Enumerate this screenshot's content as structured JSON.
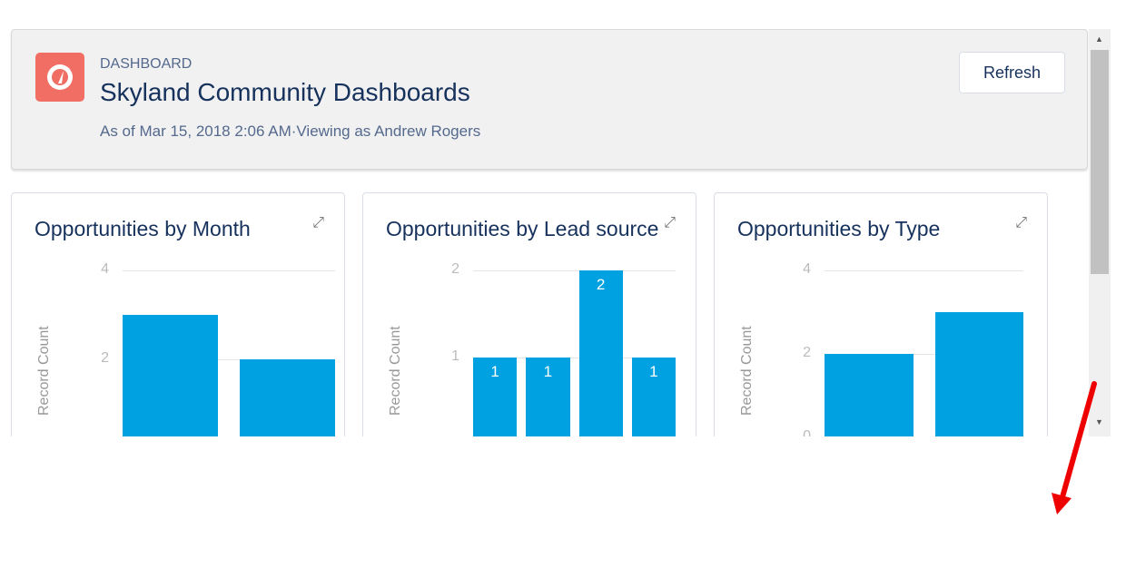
{
  "header": {
    "label": "DASHBOARD",
    "title": "Skyland Community Dashboards",
    "subtitle": "As of Mar 15, 2018 2:06 AM·Viewing as Andrew Rogers",
    "refresh_label": "Refresh",
    "logo_color": "#f06e63"
  },
  "chart_data": [
    {
      "type": "bar",
      "title": "Opportunities by Month",
      "ylabel": "Record Count",
      "yticks": [
        "4",
        "2"
      ],
      "tickvals": [
        4,
        2
      ],
      "ylim": [
        0,
        4
      ],
      "values": [
        3,
        2
      ],
      "show_labels": false
    },
    {
      "type": "bar",
      "title": "Opportunities by Lead source",
      "ylabel": "Record Count",
      "yticks": [
        "2",
        "1"
      ],
      "tickvals": [
        2,
        1
      ],
      "ylim": [
        0,
        2
      ],
      "values": [
        1,
        1,
        2,
        1
      ],
      "show_labels": true
    },
    {
      "type": "bar",
      "title": "Opportunities by Type",
      "ylabel": "Record Count",
      "yticks": [
        "4",
        "2",
        "0"
      ],
      "tickvals": [
        4,
        2,
        0
      ],
      "ylim": [
        0,
        4
      ],
      "values": [
        2,
        3
      ],
      "show_labels": false
    }
  ],
  "bar_color": "#00a1e0"
}
